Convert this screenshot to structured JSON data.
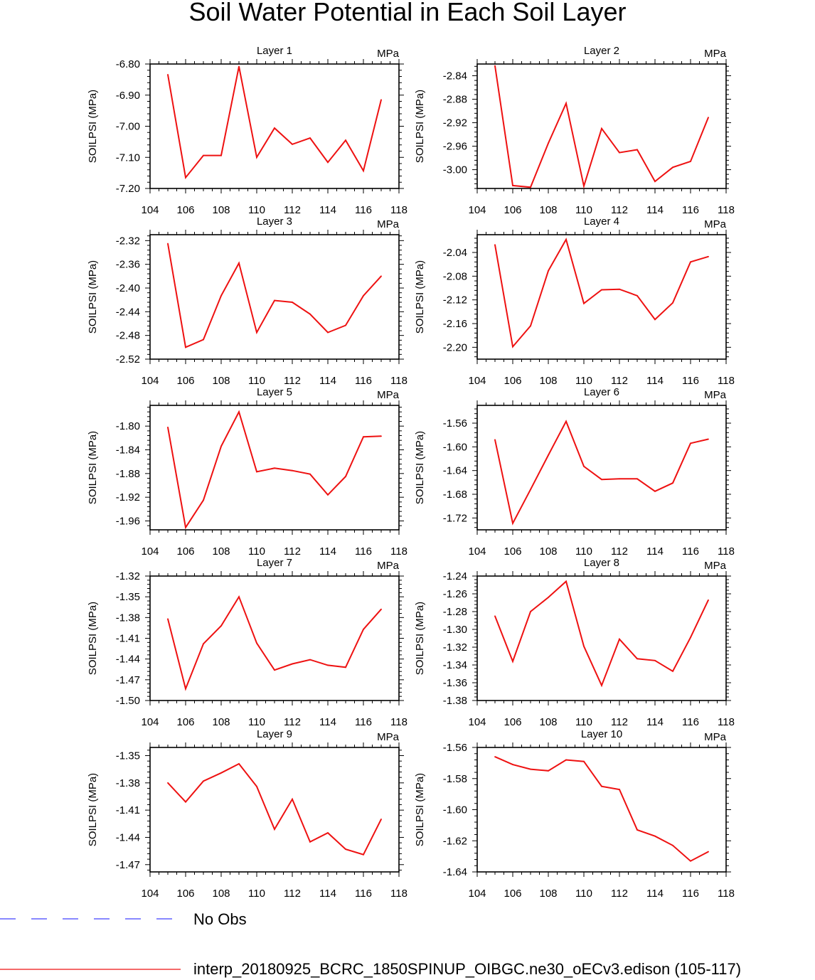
{
  "title": "Soil Water Potential in Each Soil Layer",
  "line_color": "#ee1111",
  "obs_color": "#4040ff",
  "legend": {
    "obs_label": "No Obs",
    "model_label": "interp_20180925_BCRC_1850SPINUP_OIBGC.ne30_oECv3.edison (105-117)"
  },
  "chart_data": [
    {
      "type": "line",
      "title": "Layer 1",
      "units": "MPa",
      "ylabel": "SOILPSI  (MPa)",
      "xlim": [
        104,
        118
      ],
      "ylim": [
        -7.2,
        -6.8
      ],
      "xticks": [
        104,
        106,
        108,
        110,
        112,
        114,
        116,
        118
      ],
      "yticks": [
        -7.2,
        -7.1,
        -7.0,
        -6.9,
        -6.8
      ],
      "ytick_labels": [
        "-7.20",
        "-7.10",
        "-7.00",
        "-6.90",
        "-6.80"
      ],
      "x": [
        105,
        106,
        107,
        108,
        109,
        110,
        111,
        112,
        113,
        114,
        115,
        116,
        117
      ],
      "y": [
        -6.834,
        -7.165,
        -7.094,
        -7.094,
        -6.808,
        -7.1,
        -7.006,
        -7.058,
        -7.038,
        -7.116,
        -7.045,
        -7.143,
        -6.915
      ]
    },
    {
      "type": "line",
      "title": "Layer 2",
      "units": "MPa",
      "ylabel": "SOILPSI  (MPa)",
      "xlim": [
        104,
        118
      ],
      "ylim": [
        -3.032,
        -2.82
      ],
      "xticks": [
        104,
        106,
        108,
        110,
        112,
        114,
        116,
        118
      ],
      "yticks": [
        -3.0,
        -2.96,
        -2.92,
        -2.88,
        -2.84
      ],
      "ytick_labels": [
        "-3.00",
        "-2.96",
        "-2.92",
        "-2.88",
        "-2.84"
      ],
      "x": [
        105,
        106,
        107,
        108,
        109,
        110,
        111,
        112,
        113,
        114,
        115,
        116,
        117
      ],
      "y": [
        -2.823,
        -3.027,
        -3.03,
        -2.955,
        -2.887,
        -3.028,
        -2.93,
        -2.971,
        -2.966,
        -3.02,
        -2.996,
        -2.986,
        -2.911
      ]
    },
    {
      "type": "line",
      "title": "Layer 3",
      "units": "MPa",
      "ylabel": "SOILPSI  (MPa)",
      "xlim": [
        104,
        118
      ],
      "ylim": [
        -2.52,
        -2.31
      ],
      "xticks": [
        104,
        106,
        108,
        110,
        112,
        114,
        116,
        118
      ],
      "yticks": [
        -2.52,
        -2.48,
        -2.44,
        -2.4,
        -2.36,
        -2.32
      ],
      "ytick_labels": [
        "-2.52",
        "-2.48",
        "-2.44",
        "-2.40",
        "-2.36",
        "-2.32"
      ],
      "x": [
        105,
        106,
        107,
        108,
        109,
        110,
        111,
        112,
        113,
        114,
        115,
        116,
        117
      ],
      "y": [
        -2.325,
        -2.5,
        -2.487,
        -2.413,
        -2.358,
        -2.475,
        -2.421,
        -2.424,
        -2.444,
        -2.475,
        -2.463,
        -2.413,
        -2.38
      ]
    },
    {
      "type": "line",
      "title": "Layer 4",
      "units": "MPa",
      "ylabel": "SOILPSI  (MPa)",
      "xlim": [
        104,
        118
      ],
      "ylim": [
        -2.22,
        -2.01
      ],
      "xticks": [
        104,
        106,
        108,
        110,
        112,
        114,
        116,
        118
      ],
      "yticks": [
        -2.2,
        -2.16,
        -2.12,
        -2.08,
        -2.04
      ],
      "ytick_labels": [
        "-2.20",
        "-2.16",
        "-2.12",
        "-2.08",
        "-2.04"
      ],
      "x": [
        105,
        106,
        107,
        108,
        109,
        110,
        111,
        112,
        113,
        114,
        115,
        116,
        117
      ],
      "y": [
        -2.027,
        -2.199,
        -2.164,
        -2.071,
        -2.018,
        -2.126,
        -2.103,
        -2.102,
        -2.113,
        -2.153,
        -2.125,
        -2.056,
        -2.047
      ]
    },
    {
      "type": "line",
      "title": "Layer 5",
      "units": "MPa",
      "ylabel": "SOILPSI  (MPa)",
      "xlim": [
        104,
        118
      ],
      "ylim": [
        -1.975,
        -1.765
      ],
      "xticks": [
        104,
        106,
        108,
        110,
        112,
        114,
        116,
        118
      ],
      "yticks": [
        -1.96,
        -1.92,
        -1.88,
        -1.84,
        -1.8
      ],
      "ytick_labels": [
        "-1.96",
        "-1.92",
        "-1.88",
        "-1.84",
        "-1.80"
      ],
      "x": [
        105,
        106,
        107,
        108,
        109,
        110,
        111,
        112,
        113,
        114,
        115,
        116,
        117
      ],
      "y": [
        -1.802,
        -1.971,
        -1.925,
        -1.834,
        -1.776,
        -1.877,
        -1.871,
        -1.875,
        -1.881,
        -1.916,
        -1.885,
        -1.818,
        -1.817
      ]
    },
    {
      "type": "line",
      "title": "Layer 6",
      "units": "MPa",
      "ylabel": "SOILPSI  (MPa)",
      "xlim": [
        104,
        118
      ],
      "ylim": [
        -1.74,
        -1.53
      ],
      "xticks": [
        104,
        106,
        108,
        110,
        112,
        114,
        116,
        118
      ],
      "yticks": [
        -1.72,
        -1.68,
        -1.64,
        -1.6,
        -1.56
      ],
      "ytick_labels": [
        "-1.72",
        "-1.68",
        "-1.64",
        "-1.60",
        "-1.56"
      ],
      "x": [
        105,
        106,
        107,
        108,
        109,
        110,
        111,
        112,
        113,
        114,
        115,
        116,
        117
      ],
      "y": [
        -1.588,
        -1.729,
        -1.672,
        -1.614,
        -1.557,
        -1.633,
        -1.655,
        -1.654,
        -1.654,
        -1.675,
        -1.661,
        -1.594,
        -1.587
      ]
    },
    {
      "type": "line",
      "title": "Layer 7",
      "units": "MPa",
      "ylabel": "SOILPSI  (MPa)",
      "xlim": [
        104,
        118
      ],
      "ylim": [
        -1.5,
        -1.32
      ],
      "xticks": [
        104,
        106,
        108,
        110,
        112,
        114,
        116,
        118
      ],
      "yticks": [
        -1.5,
        -1.47,
        -1.44,
        -1.41,
        -1.38,
        -1.35,
        -1.32
      ],
      "ytick_labels": [
        "-1.50",
        "-1.47",
        "-1.44",
        "-1.41",
        "-1.38",
        "-1.35",
        "-1.32"
      ],
      "x": [
        105,
        106,
        107,
        108,
        109,
        110,
        111,
        112,
        113,
        114,
        115,
        116,
        117
      ],
      "y": [
        -1.382,
        -1.483,
        -1.418,
        -1.392,
        -1.35,
        -1.417,
        -1.456,
        -1.447,
        -1.441,
        -1.449,
        -1.452,
        -1.397,
        -1.368
      ]
    },
    {
      "type": "line",
      "title": "Layer 8",
      "units": "MPa",
      "ylabel": "SOILPSI  (MPa)",
      "xlim": [
        104,
        118
      ],
      "ylim": [
        -1.38,
        -1.24
      ],
      "xticks": [
        104,
        106,
        108,
        110,
        112,
        114,
        116,
        118
      ],
      "yticks": [
        -1.38,
        -1.36,
        -1.34,
        -1.32,
        -1.3,
        -1.28,
        -1.26,
        -1.24
      ],
      "ytick_labels": [
        "-1.38",
        "-1.36",
        "-1.34",
        "-1.32",
        "-1.30",
        "-1.28",
        "-1.26",
        "-1.24"
      ],
      "x": [
        105,
        106,
        107,
        108,
        109,
        110,
        111,
        112,
        113,
        114,
        115,
        116,
        117
      ],
      "y": [
        -1.285,
        -1.336,
        -1.28,
        -1.264,
        -1.246,
        -1.319,
        -1.363,
        -1.311,
        -1.333,
        -1.335,
        -1.347,
        -1.309,
        -1.267
      ]
    },
    {
      "type": "line",
      "title": "Layer 9",
      "units": "MPa",
      "ylabel": "SOILPSI  (MPa)",
      "xlim": [
        104,
        118
      ],
      "ylim": [
        -1.478,
        -1.341
      ],
      "xticks": [
        104,
        106,
        108,
        110,
        112,
        114,
        116,
        118
      ],
      "yticks": [
        -1.47,
        -1.44,
        -1.41,
        -1.38,
        -1.35
      ],
      "ytick_labels": [
        "-1.47",
        "-1.44",
        "-1.41",
        "-1.38",
        "-1.35"
      ],
      "x": [
        105,
        106,
        107,
        108,
        109,
        110,
        111,
        112,
        113,
        114,
        115,
        116,
        117
      ],
      "y": [
        -1.38,
        -1.401,
        -1.378,
        -1.369,
        -1.359,
        -1.384,
        -1.431,
        -1.398,
        -1.445,
        -1.435,
        -1.453,
        -1.459,
        -1.42
      ]
    },
    {
      "type": "line",
      "title": "Layer 10",
      "units": "MPa",
      "ylabel": "SOILPSI  (MPa)",
      "xlim": [
        104,
        118
      ],
      "ylim": [
        -1.64,
        -1.56
      ],
      "xticks": [
        104,
        106,
        108,
        110,
        112,
        114,
        116,
        118
      ],
      "yticks": [
        -1.64,
        -1.62,
        -1.6,
        -1.58,
        -1.56
      ],
      "ytick_labels": [
        "-1.64",
        "-1.62",
        "-1.60",
        "-1.58",
        "-1.56"
      ],
      "x": [
        105,
        106,
        107,
        108,
        109,
        110,
        111,
        112,
        113,
        114,
        115,
        116,
        117
      ],
      "y": [
        -1.566,
        -1.571,
        -1.574,
        -1.575,
        -1.568,
        -1.569,
        -1.585,
        -1.587,
        -1.613,
        -1.617,
        -1.623,
        -1.633,
        -1.627
      ]
    }
  ]
}
